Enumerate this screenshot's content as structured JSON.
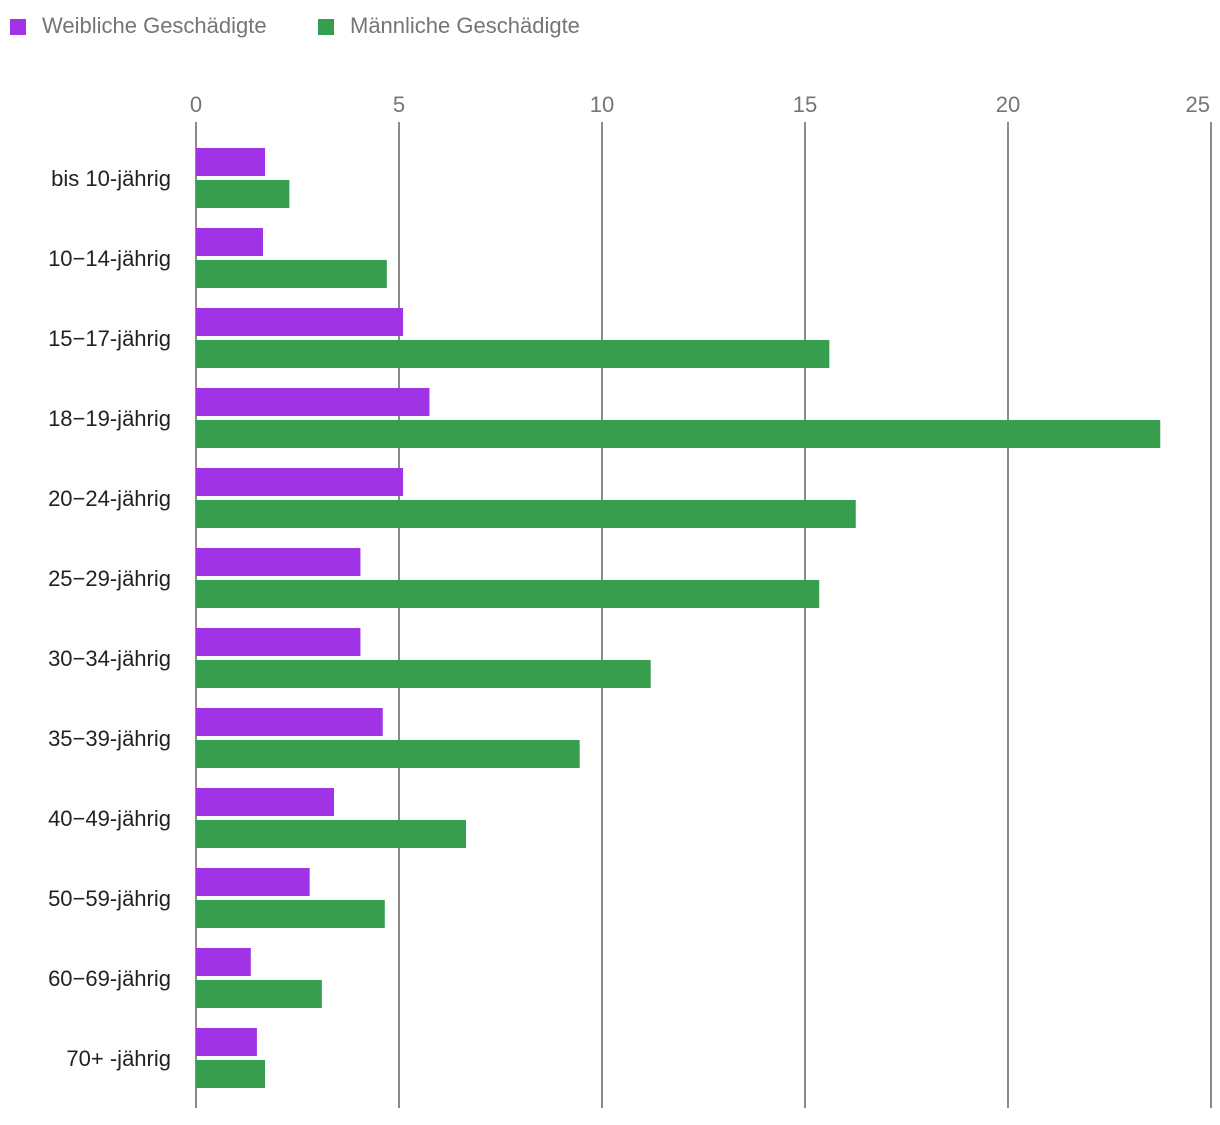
{
  "chart_data": {
    "type": "bar",
    "orientation": "horizontal",
    "title": "",
    "xlabel": "",
    "ylabel": "",
    "xlim": [
      0,
      25
    ],
    "ticks": [
      "0",
      "5",
      "10",
      "15",
      "20",
      "25"
    ],
    "tick_values": [
      0,
      5,
      10,
      15,
      20,
      25
    ],
    "grid": true,
    "legend_position": "top-left",
    "categories": [
      "bis 10-jährig",
      "10−14-jährig",
      "15−17-jährig",
      "18−19-jährig",
      "20−24-jährig",
      "25−29-jährig",
      "30−34-jährig",
      "35−39-jährig",
      "40−49-jährig",
      "50−59-jährig",
      "60−69-jährig",
      "70+ -jährig"
    ],
    "series": [
      {
        "name": "Weibliche Geschädigte",
        "color": "#a033e6",
        "values": [
          1.7,
          1.65,
          5.1,
          5.75,
          5.1,
          4.05,
          4.05,
          4.6,
          3.4,
          2.8,
          1.35,
          1.5
        ]
      },
      {
        "name": "Männliche Geschädigte",
        "color": "#379e4d",
        "values": [
          2.3,
          4.7,
          15.6,
          23.75,
          16.25,
          15.35,
          11.2,
          9.45,
          6.65,
          4.65,
          3.1,
          1.7
        ]
      }
    ]
  }
}
